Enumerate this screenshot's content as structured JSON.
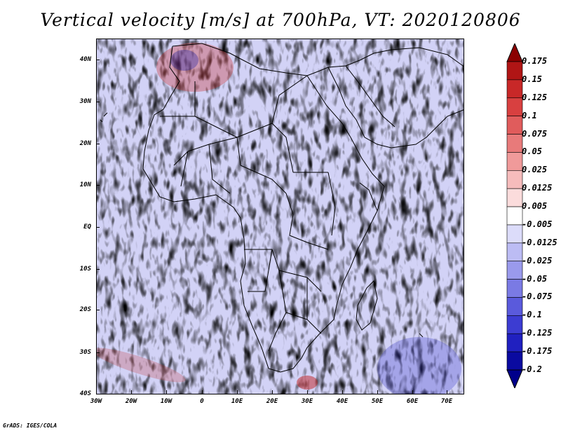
{
  "title": "Vertical velocity [m/s] at 700hPa, VT: 2020120806",
  "credit": "GrADS: IGES/COLA",
  "lat_labels": [
    "40N",
    "30N",
    "20N",
    "10N",
    "EQ",
    "10S",
    "20S",
    "30S",
    "40S"
  ],
  "lon_labels": [
    "30W",
    "20W",
    "10W",
    "0",
    "10E",
    "20E",
    "30E",
    "40E",
    "50E",
    "60E",
    "70E"
  ],
  "colorbar": {
    "labels": [
      "0.175",
      "0.15",
      "0.125",
      "0.1",
      "0.075",
      "0.05",
      "0.025",
      "0.0125",
      "0.005",
      "-0.005",
      "-0.0125",
      "-0.025",
      "-0.05",
      "-0.075",
      "-0.1",
      "-0.125",
      "-0.175",
      "-0.2"
    ],
    "colors": [
      "#8b0000",
      "#b01515",
      "#c82828",
      "#d84040",
      "#e05c5c",
      "#e87a7a",
      "#f09a9a",
      "#f6bcbc",
      "#fbdcdc",
      "#ffffff",
      "#dcdcfa",
      "#bcbcf4",
      "#9a9aec",
      "#7a7ae4",
      "#5a5adc",
      "#3c3cd2",
      "#2020c0",
      "#0a0aa0",
      "#00008b"
    ]
  },
  "map_colors": {
    "background": "#d2d2f6",
    "positive": "#e06060",
    "negative": "#5a5ad8",
    "border": "#000000"
  }
}
